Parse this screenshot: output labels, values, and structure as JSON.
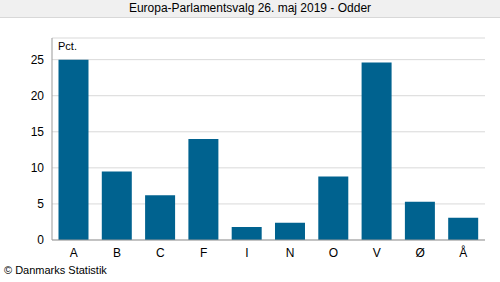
{
  "chart_data": {
    "type": "bar",
    "title": "Europa-Parlamentsvalg 26. maj 2019 - Odder",
    "y_label": "Pct.",
    "annotation": "© Danmarks Statistik",
    "categories": [
      "A",
      "B",
      "C",
      "F",
      "I",
      "N",
      "O",
      "V",
      "Ø",
      "Å"
    ],
    "values": [
      25.0,
      9.5,
      6.2,
      14.0,
      1.8,
      2.4,
      8.8,
      24.6,
      5.3,
      3.1
    ],
    "color": "#00628f",
    "ylim": [
      0,
      28
    ],
    "yticks": [
      0,
      5,
      10,
      15,
      20,
      25
    ],
    "grid": true
  }
}
